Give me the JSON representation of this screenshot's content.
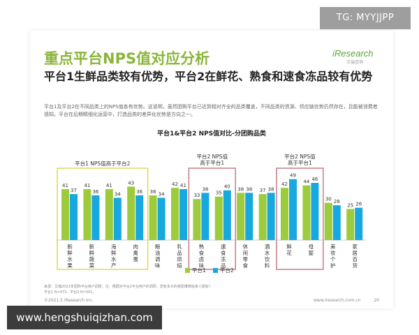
{
  "watermark": "TG: MYYJJPP",
  "logo": {
    "text": "iResearch",
    "sub": "艾瑞咨询"
  },
  "title": "重点平台NPS值对应分析",
  "subtitle": "平台1生鲜品类较有优势，平台2在鲜花、熟食和速食冻品较有优势",
  "description": "平台1及平台2在不同品类上的NPS值各有优势。这说明，虽然团购平台已达到相对齐全的品类覆盖，不同品类的资源、供应链优势仍然存在，且能被消费者感知。平台在后期精细化运营中，打造品类的差异化优势是方向之一。",
  "colors": {
    "series1": "#9ccc3c",
    "series2": "#18a8e0",
    "box_green": "#d8dc55",
    "box_red": "#c47c86"
  },
  "chart_data": {
    "type": "bar",
    "title": "平台1&平台2 NPS值对比-分团购品类",
    "categories": [
      "新鲜水果",
      "新鲜蔬菜",
      "海鲜水产",
      "肉禽蛋",
      "粮油调味",
      "乳品烘焙",
      "熟食卤味",
      "速食冻品",
      "休闲零食",
      "酒水饮料",
      "鲜花",
      "母婴",
      "美妆个护",
      "家居百货"
    ],
    "series": [
      {
        "name": "平台1",
        "values": [
          41,
          41,
          41,
          43,
          36,
          42,
          33,
          35,
          38,
          37,
          42,
          44,
          30,
          25
        ]
      },
      {
        "name": "平台2",
        "values": [
          37,
          36,
          34,
          36,
          34,
          41,
          38,
          40,
          38,
          38,
          49,
          46,
          28,
          26
        ]
      }
    ],
    "ylim": [
      0,
      55
    ],
    "legend_position": "bottom",
    "groups": [
      {
        "label": "平台1 NPS值高于平台2",
        "from": 0,
        "to": 3,
        "color": "green"
      },
      {
        "label": "平台2 NPS值高于平台1",
        "from": 6,
        "to": 7,
        "color": "red"
      },
      {
        "label": "平台2 NPS值高于平台1",
        "from": 10,
        "to": 11,
        "color": "red"
      }
    ]
  },
  "source_note": "来源：艾瑞2021年团购平台用户调研。注：根据对平台2平台用户的调研，您有多大的意愿推荐给家人朋友？",
  "source_note_2": "平台1 N=473、平台2 N=501。",
  "copyright": "©2021.5 iResearch Inc.",
  "site": "www.iresearch.com.cn",
  "page_number": "20",
  "bottom_url": "www.hengshuiqizhan.com"
}
